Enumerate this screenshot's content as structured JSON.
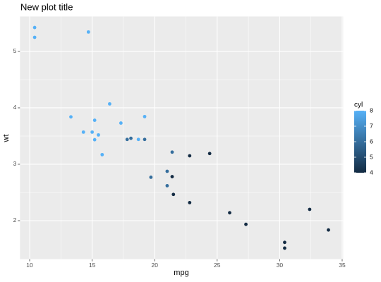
{
  "chart_data": {
    "type": "scatter",
    "title": "New plot title",
    "x_label": "mpg",
    "y_label": "wt",
    "x": [
      21.0,
      21.0,
      22.8,
      21.4,
      18.7,
      18.1,
      14.3,
      24.4,
      22.8,
      19.2,
      17.8,
      16.4,
      17.3,
      15.2,
      10.4,
      10.4,
      14.7,
      32.4,
      30.4,
      33.9,
      21.5,
      15.5,
      15.2,
      13.3,
      19.2,
      27.3,
      26.0,
      30.4,
      15.8,
      19.7,
      15.0,
      21.4
    ],
    "values": [
      2.62,
      2.875,
      2.32,
      3.215,
      3.44,
      3.46,
      3.57,
      3.19,
      3.15,
      3.44,
      3.44,
      4.07,
      3.73,
      3.78,
      5.25,
      5.424,
      5.345,
      2.2,
      1.615,
      1.835,
      2.465,
      3.52,
      3.435,
      3.84,
      3.845,
      1.935,
      2.14,
      1.513,
      3.17,
      2.77,
      3.57,
      2.78
    ],
    "color_values": [
      6,
      6,
      4,
      6,
      8,
      6,
      8,
      4,
      4,
      6,
      6,
      8,
      8,
      8,
      8,
      8,
      8,
      4,
      4,
      4,
      4,
      8,
      8,
      8,
      8,
      4,
      4,
      4,
      8,
      6,
      8,
      4
    ],
    "color_scale": {
      "name": "cyl",
      "low": "#132B43",
      "high": "#56B1F7",
      "lim": [
        4,
        8
      ],
      "ticks": [
        4,
        5,
        6,
        7,
        8
      ]
    },
    "xlim": [
      9.225,
      35.075
    ],
    "xticks": [
      10,
      15,
      20,
      25,
      30,
      35
    ],
    "ylim": [
      1.31745,
      5.61955
    ],
    "yticks": [
      2,
      3,
      4,
      5
    ],
    "grid": true
  }
}
